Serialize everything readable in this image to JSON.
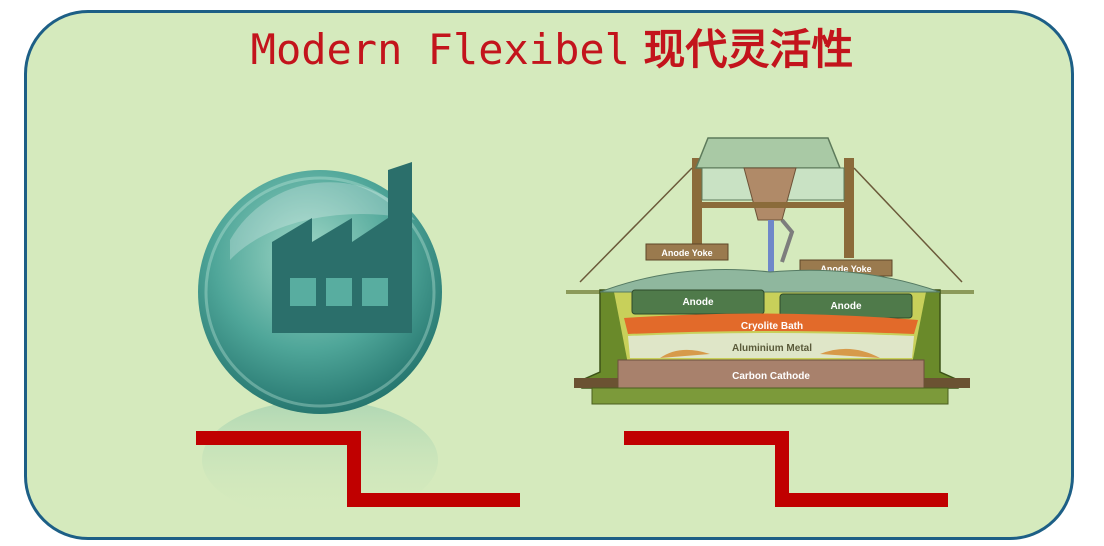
{
  "title": {
    "en": "Modern Flexibel",
    "zh": "现代灵活性"
  },
  "cell_labels": {
    "anode_yoke_left": "Anode Yoke",
    "anode_yoke_right": "Anode Yoke",
    "anode_left": "Anode",
    "anode_right": "Anode",
    "cryolite_bath": "Cryolite Bath",
    "aluminium_metal": "Aluminium Metal",
    "carbon_cathode": "Carbon Cathode"
  },
  "icons": {
    "left": "factory-icon",
    "right": "aluminium-smelting-cell"
  },
  "colors": {
    "border": "#1d5f86",
    "background": "#d5eabd",
    "title": "#c3141c",
    "step_line": "#c00000"
  }
}
